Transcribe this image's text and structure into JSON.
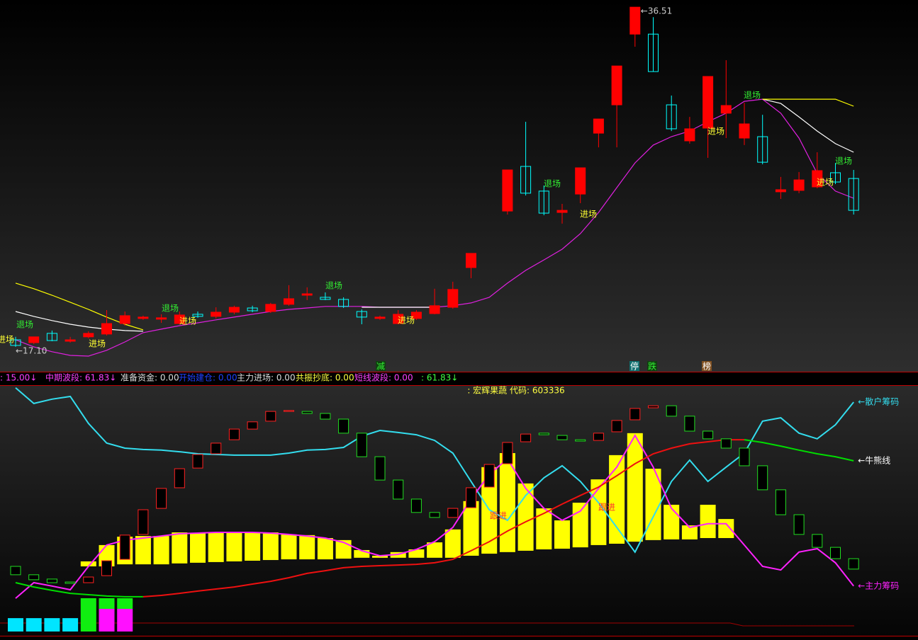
{
  "chart_data": [
    {
      "type": "candlestick",
      "ylim": [
        15.68,
        36.92
      ],
      "up_color": "#ff0000",
      "down_color": "#00ffff",
      "open": [
        17.5,
        17.34,
        17.87,
        17.42,
        17.67,
        17.83,
        18.43,
        18.72,
        18.68,
        18.43,
        18.96,
        18.84,
        19.08,
        19.32,
        19.12,
        19.53,
        20.05,
        19.93,
        19.81,
        19.12,
        18.72,
        18.43,
        18.72,
        19.0,
        19.36,
        21.63,
        null,
        24.86,
        27.41,
        26.0,
        24.78,
        25.83,
        29.31,
        30.93,
        34.97,
        34.97,
        30.93,
        28.87,
        29.6,
        30.45,
        29.03,
        29.11,
        25.96,
        26.04,
        26.24,
        27.05,
        26.72
      ],
      "close": [
        17.18,
        17.67,
        17.46,
        17.5,
        17.87,
        18.43,
        18.88,
        18.8,
        18.76,
        18.92,
        18.84,
        19.08,
        19.36,
        19.16,
        19.53,
        19.85,
        20.13,
        19.81,
        19.41,
        18.8,
        18.8,
        18.96,
        19.08,
        19.45,
        20.38,
        22.44,
        null,
        27.21,
        25.88,
        24.74,
        24.9,
        27.33,
        30.12,
        33.15,
        36.51,
        32.83,
        29.56,
        29.56,
        32.55,
        30.89,
        29.84,
        27.65,
        26.08,
        26.64,
        27.17,
        26.52,
        24.9
      ],
      "high": [
        17.67,
        17.67,
        18.03,
        17.67,
        17.99,
        19.2,
        19.12,
        18.88,
        18.96,
        19.12,
        19.12,
        19.36,
        19.45,
        19.45,
        19.61,
        20.62,
        20.5,
        20.21,
        19.93,
        19.24,
        18.88,
        19.2,
        19.2,
        20.42,
        20.82,
        22.44,
        null,
        27.21,
        29.96,
        26.32,
        25.27,
        27.33,
        30.12,
        33.15,
        36.51,
        35.94,
        31.46,
        30.24,
        32.55,
        33.48,
        31.05,
        30.36,
        26.81,
        27.09,
        28.22,
        27.61,
        27.21
      ],
      "low": [
        17.1,
        17.26,
        17.42,
        17.34,
        17.59,
        17.75,
        18.31,
        18.64,
        18.47,
        18.39,
        18.76,
        18.72,
        18.96,
        19.08,
        19.04,
        19.45,
        19.77,
        19.77,
        19.32,
        18.39,
        18.64,
        18.39,
        18.64,
        18.96,
        19.28,
        21.02,
        null,
        24.66,
        25.75,
        24.62,
        24.14,
        25.31,
        28.5,
        28.5,
        34.25,
        32.83,
        29.43,
        28.71,
        27.9,
        29.03,
        28.63,
        27.53,
        25.55,
        25.88,
        26.16,
        26.4,
        24.66
      ],
      "lines": [
        {
          "color": "#e020e0",
          "values": [
            17.5,
            17.1,
            16.82,
            16.61,
            16.57,
            16.9,
            17.38,
            17.91,
            18.11,
            18.31,
            18.47,
            18.64,
            18.8,
            18.96,
            19.12,
            19.24,
            19.32,
            19.41,
            19.41,
            19.41,
            19.36,
            19.36,
            19.36,
            19.36,
            19.45,
            19.61,
            19.93,
            20.74,
            21.47,
            22.07,
            22.68,
            23.57,
            24.78,
            26.2,
            27.61,
            28.63,
            29.11,
            29.43,
            29.96,
            30.45,
            31.13,
            31.25,
            30.45,
            29.03,
            27.01,
            26.0,
            25.59
          ]
        },
        {
          "color": "#ffffff",
          "values": [
            19.12,
            18.84,
            18.6,
            18.39,
            18.23,
            18.11,
            18.03,
            17.99,
            null,
            null,
            null,
            null,
            null,
            null,
            null,
            null,
            null,
            null,
            null,
            19.36,
            19.36,
            19.36,
            19.36,
            19.36,
            null,
            null,
            null,
            null,
            null,
            null,
            null,
            null,
            null,
            null,
            null,
            null,
            null,
            null,
            null,
            null,
            null,
            31.25,
            31.01,
            30.24,
            29.43,
            28.71,
            28.22
          ]
        },
        {
          "color": "#ffff00",
          "values": [
            20.74,
            20.42,
            20.05,
            19.65,
            19.24,
            18.8,
            18.39,
            18.07,
            null,
            null,
            null,
            null,
            null,
            null,
            null,
            null,
            null,
            null,
            null,
            null,
            null,
            null,
            null,
            null,
            null,
            null,
            null,
            null,
            null,
            null,
            null,
            null,
            null,
            null,
            null,
            null,
            null,
            null,
            null,
            null,
            null,
            31.25,
            31.25,
            31.25,
            31.25,
            31.25,
            30.85
          ]
        }
      ],
      "high_label": "←36.51",
      "low_label": "←17.10",
      "annotations": [
        {
          "text": "退场",
          "color": "#33ee33"
        },
        {
          "text": "进场",
          "color": "#ffff33"
        },
        {
          "text": "进场",
          "color": "#ffff33"
        },
        {
          "text": "退场",
          "color": "#33ee33"
        },
        {
          "text": "进场",
          "color": "#ffff33"
        },
        {
          "text": "退场",
          "color": "#33ee33"
        },
        {
          "text": "进场",
          "color": "#ffff33"
        },
        {
          "text": "退场",
          "color": "#33ee33"
        },
        {
          "text": "进场",
          "color": "#ffff33"
        },
        {
          "text": "进场",
          "color": "#ffff33"
        },
        {
          "text": "退场",
          "color": "#33ee33"
        },
        {
          "text": "进场",
          "color": "#ffff33"
        },
        {
          "text": "退场",
          "color": "#33ee33"
        }
      ],
      "signals": [
        {
          "text": "减",
          "color": "#33ee33",
          "background": "#104010"
        },
        {
          "text": "停",
          "color": "#ffffff",
          "background": "#107070"
        },
        {
          "text": "跌",
          "color": "#33ee33",
          "background": "#104010"
        },
        {
          "text": "榜",
          "color": "#ffffff",
          "background": "#805020"
        }
      ],
      "status_items": [
        {
          "text": ": 15.00↓",
          "color": "#ff40ff"
        },
        {
          "text": "中期波段: 61.83↓",
          "color": "#ff40ff"
        },
        {
          "text": "准备资金: 0.00",
          "color": "#dddddd"
        },
        {
          "text": "开始建仓: 0.00",
          "color": "#2040ff"
        },
        {
          "text": "主力进场: 0.00",
          "color": "#dddddd"
        },
        {
          "text": "共振抄底: 0.00",
          "color": "#ffff40"
        },
        {
          "text": "短线波段: 0.00",
          "color": "#ff40ff"
        },
        {
          "text": ": 61.83↓",
          "color": "#40ff40"
        }
      ]
    },
    {
      "type": "indicator",
      "title": ": 宏辉果蔬 代码: 603336",
      "ylim": [
        0,
        104
      ],
      "bars": {
        "color": "#ffff00",
        "values": [
          null,
          null,
          null,
          null,
          27.2,
          34.4,
          38.1,
          38.4,
          38.4,
          40,
          39.7,
          40,
          40,
          40,
          40,
          39.1,
          38.8,
          37.5,
          36.6,
          32.2,
          29.7,
          31.3,
          32.5,
          35.6,
          41.3,
          53.8,
          68.8,
          75,
          61.6,
          50.6,
          45.3,
          53.1,
          63.4,
          74.1,
          83.8,
          68.1,
          52.2,
          43.1,
          52.2,
          45.9,
          null,
          null,
          null,
          null,
          null,
          null,
          null
        ],
        "base": [
          null,
          null,
          null,
          null,
          25,
          25,
          25.9,
          25.9,
          25.9,
          26.3,
          26.6,
          26.9,
          27.2,
          27.5,
          27.8,
          28.1,
          28.1,
          28.1,
          28.4,
          28.8,
          28.8,
          28.8,
          28.8,
          28.8,
          28.8,
          29.7,
          30.6,
          31.3,
          31.9,
          32.5,
          32.8,
          33.4,
          34.4,
          35,
          35.9,
          36.6,
          36.9,
          36.9,
          37.5,
          37.5,
          null,
          null,
          null,
          null,
          null,
          null,
          null
        ]
      },
      "boxes": {
        "up_color": "#ff2020",
        "down_color": "#20dd20",
        "open": [
          25,
          21.3,
          19.4,
          18.1,
          17.8,
          20.9,
          28.1,
          39.1,
          50.6,
          59.7,
          68.4,
          74.7,
          80.9,
          85.6,
          89.1,
          93.4,
          93.4,
          92.5,
          90,
          83.8,
          73.4,
          63.1,
          54.7,
          48.8,
          46.6,
          50.9,
          60,
          70.3,
          80,
          83.8,
          82.8,
          80.9,
          80.6,
          84.4,
          89.7,
          95,
          95.9,
          91.3,
          84.7,
          81.3,
          77.2,
          69.4,
          58.8,
          47.8,
          39.1,
          33.4,
          28.4
        ],
        "close": [
          21.3,
          19.1,
          17.8,
          17.5,
          20.3,
          27.5,
          38.8,
          50,
          59.4,
          68.1,
          74.4,
          79.4,
          85.6,
          88.8,
          93.4,
          93.8,
          92.5,
          90,
          83.8,
          73.4,
          63.1,
          54.7,
          48.8,
          46.6,
          50.6,
          59.7,
          70,
          79.7,
          83.4,
          83.1,
          80.9,
          80.3,
          83.8,
          89.4,
          94.7,
          95.9,
          91.3,
          84.7,
          81.3,
          77.2,
          69.4,
          58.8,
          47.8,
          39.1,
          33.4,
          28.4,
          23.8
        ]
      },
      "series": [
        {
          "name": "←散户筹码",
          "color": "#33ddee",
          "values": [
            103.8,
            96.9,
            98.8,
            100,
            88.1,
            79.4,
            77.2,
            76.6,
            76.3,
            75.6,
            74.7,
            74.4,
            74.1,
            74.1,
            74.1,
            75,
            76.3,
            76.6,
            77.5,
            82.5,
            85,
            84.1,
            83.1,
            80.6,
            75,
            62.5,
            50,
            45.3,
            56.3,
            64.1,
            69.4,
            62.5,
            53.1,
            42.2,
            31.3,
            46.9,
            62.5,
            71.9,
            62.5,
            68.8,
            75,
            89.1,
            90.6,
            83.8,
            81.3,
            87.5,
            97.5
          ]
        },
        {
          "name": "←主力筹码",
          "color": "#ff22ff",
          "values": [
            10.9,
            17.8,
            16.3,
            14.7,
            25,
            34.4,
            36.6,
            37.5,
            38.4,
            39.4,
            39.7,
            40,
            40,
            40,
            39.7,
            39.1,
            38.4,
            37.5,
            35.6,
            31.9,
            29.7,
            30.3,
            32.5,
            35.9,
            42.2,
            54.7,
            65.6,
            72.5,
            59.4,
            50.6,
            45.3,
            49.4,
            59.4,
            68.8,
            82.8,
            68.8,
            50.6,
            42.2,
            43.8,
            43.8,
            34.4,
            25,
            23.4,
            31.3,
            32.8,
            26.6,
            16.3
          ]
        },
        {
          "name": "←牛熊线",
          "color": "#00dd00",
          "label_color": "#ffffff",
          "values": [
            17.8,
            15.9,
            14.4,
            13.1,
            12.5,
            11.9,
            11.6,
            11.6,
            null,
            null,
            null,
            null,
            null,
            null,
            null,
            null,
            null,
            null,
            null,
            null,
            null,
            null,
            null,
            null,
            null,
            null,
            null,
            null,
            null,
            null,
            null,
            null,
            null,
            null,
            null,
            null,
            null,
            null,
            null,
            null,
            80.9,
            79.7,
            78.1,
            76.3,
            74.7,
            73.4,
            71.6
          ]
        },
        {
          "color": "#ee1010",
          "values": [
            null,
            null,
            null,
            null,
            null,
            null,
            null,
            11.6,
            12.2,
            13.1,
            14.1,
            15,
            15.9,
            17.2,
            18.4,
            20,
            21.9,
            23.1,
            24.4,
            25,
            25.3,
            25.6,
            25.9,
            26.6,
            28.1,
            31.9,
            35.9,
            40.6,
            44.7,
            48.4,
            52.5,
            56.3,
            60,
            65,
            70.3,
            74.7,
            77.2,
            79.1,
            80,
            80.9,
            80.9,
            null,
            null,
            null,
            null,
            null,
            null
          ]
        }
      ],
      "histogram": [
        {
          "color": "#00e5ff",
          "values": [
            5.9,
            5.9,
            5.9,
            5.9,
            null,
            null,
            null
          ]
        },
        {
          "color": "#ff10ff",
          "values": [
            null,
            null,
            null,
            null,
            null,
            10,
            10
          ]
        },
        {
          "color": "#10ee10",
          "values": [
            null,
            null,
            null,
            null,
            14.7,
            4.7,
            4.7
          ]
        }
      ],
      "annotations": [
        {
          "text": "跟进",
          "color": "#ff3030"
        },
        {
          "text": "跟进",
          "color": "#ff3030"
        }
      ]
    }
  ]
}
